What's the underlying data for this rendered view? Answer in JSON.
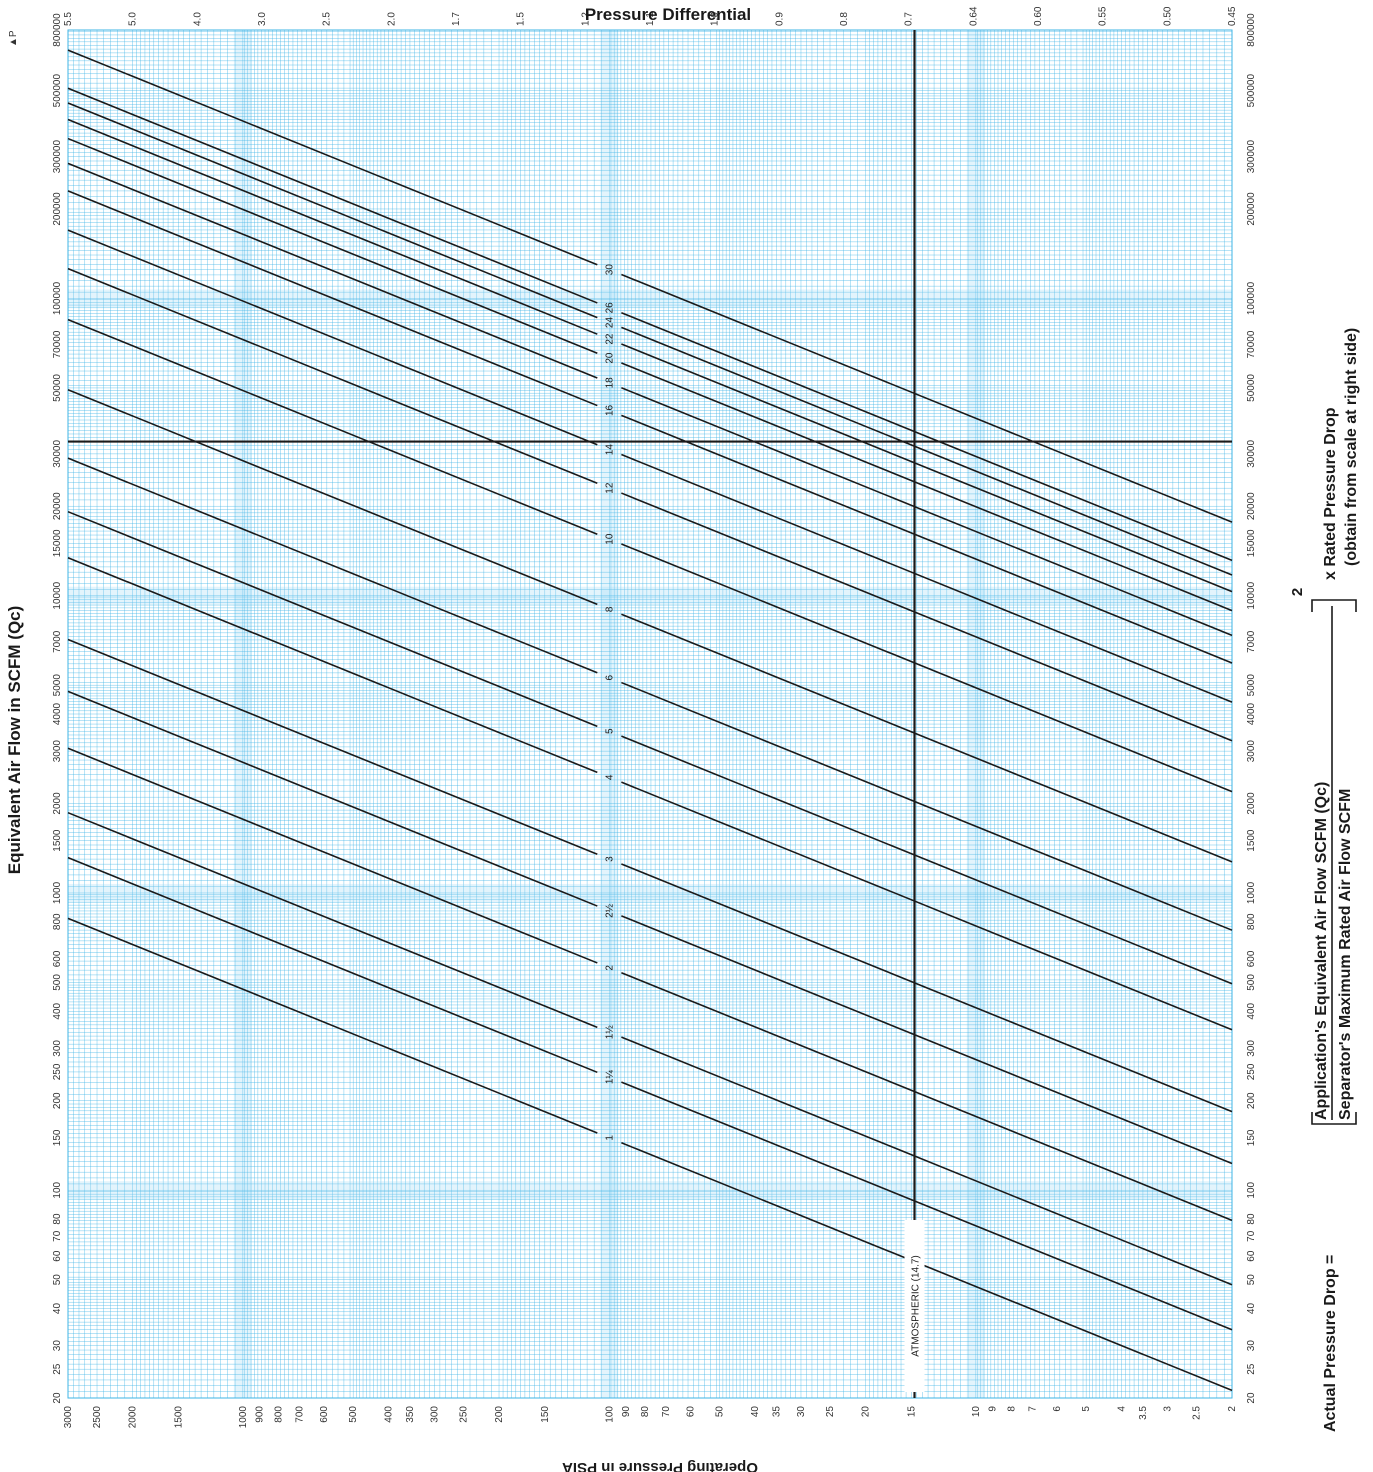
{
  "chart_data": {
    "type": "line",
    "title": "Pressure Differential",
    "top_corner_label": "▲P",
    "left_axis_label": "Equivalent Air Flow in SCFM (Qc)",
    "bottom_axis_label": "Operating Pressure in PSIA",
    "flow_scale": "log",
    "flow_range": [
      20,
      800000
    ],
    "pressure_scale": "log",
    "pressure_range": [
      2,
      3000
    ],
    "flow_ticks": [
      "20",
      "25",
      "30",
      "40",
      "50",
      "60",
      "70",
      "80",
      "100",
      "150",
      "200",
      "250",
      "300",
      "400",
      "500",
      "600",
      "800",
      "1000",
      "1500",
      "2000",
      "3000",
      "4000",
      "5000",
      "7000",
      "10000",
      "15000",
      "20000",
      "30000",
      "50000",
      "70000",
      "100000",
      "200000",
      "300000",
      "500000",
      "800000"
    ],
    "pressure_ticks": [
      "3000",
      "2500",
      "2000",
      "1500",
      "1000",
      "900",
      "800",
      "700",
      "600",
      "500",
      "400",
      "350",
      "300",
      "250",
      "200",
      "150",
      "100",
      "90",
      "80",
      "70",
      "60",
      "50",
      "40",
      "35",
      "30",
      "25",
      "20",
      "15",
      "10",
      "9",
      "8",
      "7",
      "6",
      "5",
      "4",
      "3.5",
      "3",
      "2.5",
      "2"
    ],
    "dp_ticks": [
      "5.5",
      "5.0",
      "4.0",
      "3.0",
      "2.5",
      "2.0",
      "1.7",
      "1.5",
      "1.2",
      "1.1",
      "1.0",
      "0.9",
      "0.8",
      "0.7",
      "0.64",
      "0.60",
      "0.55",
      "0.50",
      "0.45"
    ],
    "series_label_pressure": 100,
    "series": [
      {
        "name": "1",
        "flow_at_100psia": 150
      },
      {
        "name": "1¼",
        "flow_at_100psia": 240
      },
      {
        "name": "1½",
        "flow_at_100psia": 340
      },
      {
        "name": "2",
        "flow_at_100psia": 560
      },
      {
        "name": "2½",
        "flow_at_100psia": 870
      },
      {
        "name": "3",
        "flow_at_100psia": 1300
      },
      {
        "name": "4",
        "flow_at_100psia": 2450
      },
      {
        "name": "5",
        "flow_at_100psia": 3500
      },
      {
        "name": "6",
        "flow_at_100psia": 5300
      },
      {
        "name": "8",
        "flow_at_100psia": 9000
      },
      {
        "name": "10",
        "flow_at_100psia": 15500
      },
      {
        "name": "12",
        "flow_at_100psia": 23000
      },
      {
        "name": "14",
        "flow_at_100psia": 31000
      },
      {
        "name": "16",
        "flow_at_100psia": 42000
      },
      {
        "name": "18",
        "flow_at_100psia": 52000
      },
      {
        "name": "20",
        "flow_at_100psia": 63000
      },
      {
        "name": "22",
        "flow_at_100psia": 73000
      },
      {
        "name": "24",
        "flow_at_100psia": 83000
      },
      {
        "name": "26",
        "flow_at_100psia": 93000
      },
      {
        "name": "30",
        "flow_at_100psia": 125000
      }
    ],
    "reference_lines": {
      "atmospheric_pressure": 14.7,
      "atmospheric_label": "ATMOSPHERIC (14.7)",
      "example_flow": 33000
    },
    "formula": {
      "lhs": "Actual Pressure Drop =",
      "numerator": "Application's Equivalent Air Flow SCFM (Qc)",
      "denominator": "Separator's Maximum Rated Air Flow SCFM",
      "exponent": "2",
      "rhs_line1": "x Rated Pressure Drop",
      "rhs_line2": "(obtain from scale at right side)"
    },
    "colors": {
      "grid": "#3fb4e6",
      "grid_major": "#8fd3f2",
      "lines": "#1a1a1a"
    }
  }
}
